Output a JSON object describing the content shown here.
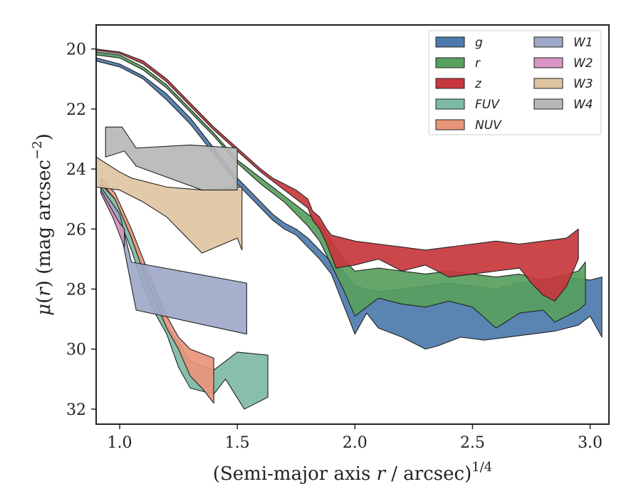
{
  "chart_data": {
    "type": "area",
    "xlabel": "(Semi-major axis r / arcsec)",
    "xlabel_parts": {
      "prefix": "(Semi-major axis ",
      "var": "r",
      "suffix": " / arcsec)",
      "sup": "1/4"
    },
    "ylabel": "μ(r) (mag arcsec⁻²)",
    "ylabel_parts": {
      "mu": "μ",
      "open": "(",
      "var": "r",
      "close": ")",
      "unit": " (mag arcsec",
      "sup": "−2",
      "end": ")"
    },
    "xlim": [
      0.9,
      3.08
    ],
    "ylim": [
      32.5,
      19.2
    ],
    "y_inverted": true,
    "x_ticks": [
      {
        "value": 1.0,
        "label": "1.0"
      },
      {
        "value": 1.5,
        "label": "1.5"
      },
      {
        "value": 2.0,
        "label": "2.0"
      },
      {
        "value": 2.5,
        "label": "2.5"
      },
      {
        "value": 3.0,
        "label": "3.0"
      }
    ],
    "y_ticks": [
      {
        "value": 20,
        "label": "20"
      },
      {
        "value": 22,
        "label": "22"
      },
      {
        "value": 24,
        "label": "24"
      },
      {
        "value": 26,
        "label": "26"
      },
      {
        "value": 28,
        "label": "28"
      },
      {
        "value": 30,
        "label": "30"
      },
      {
        "value": 32,
        "label": "32"
      }
    ],
    "grid": false,
    "legend_position": "top-right",
    "legend_columns": 2,
    "series": [
      {
        "name": "g",
        "color": "#4c7aab",
        "upper": [
          [
            0.9,
            20.3
          ],
          [
            1.0,
            20.5
          ],
          [
            1.1,
            20.9
          ],
          [
            1.2,
            21.5
          ],
          [
            1.3,
            22.3
          ],
          [
            1.4,
            23.3
          ],
          [
            1.5,
            24.3
          ],
          [
            1.6,
            25.1
          ],
          [
            1.65,
            25.5
          ],
          [
            1.7,
            25.8
          ],
          [
            1.75,
            26.0
          ],
          [
            1.8,
            26.3
          ],
          [
            1.85,
            26.7
          ],
          [
            1.9,
            27.1
          ],
          [
            1.95,
            27.4
          ],
          [
            2.0,
            27.9
          ],
          [
            2.1,
            28.1
          ],
          [
            2.2,
            28.0
          ],
          [
            2.3,
            27.9
          ],
          [
            2.4,
            27.8
          ],
          [
            2.5,
            27.9
          ],
          [
            2.6,
            28.0
          ],
          [
            2.7,
            27.8
          ],
          [
            2.8,
            27.7
          ],
          [
            2.9,
            27.6
          ],
          [
            3.0,
            27.7
          ],
          [
            3.05,
            27.6
          ]
        ],
        "lower": [
          [
            0.9,
            20.4
          ],
          [
            1.0,
            20.6
          ],
          [
            1.1,
            21.0
          ],
          [
            1.2,
            21.7
          ],
          [
            1.3,
            22.5
          ],
          [
            1.4,
            23.5
          ],
          [
            1.5,
            24.5
          ],
          [
            1.6,
            25.3
          ],
          [
            1.65,
            25.7
          ],
          [
            1.7,
            26.0
          ],
          [
            1.75,
            26.2
          ],
          [
            1.8,
            26.6
          ],
          [
            1.85,
            27.0
          ],
          [
            1.9,
            27.5
          ],
          [
            1.95,
            28.5
          ],
          [
            2.0,
            29.5
          ],
          [
            2.05,
            28.8
          ],
          [
            2.1,
            29.3
          ],
          [
            2.2,
            29.6
          ],
          [
            2.3,
            30.0
          ],
          [
            2.35,
            29.9
          ],
          [
            2.45,
            29.6
          ],
          [
            2.55,
            29.7
          ],
          [
            2.65,
            29.6
          ],
          [
            2.75,
            29.5
          ],
          [
            2.85,
            29.4
          ],
          [
            2.95,
            29.2
          ],
          [
            3.0,
            28.9
          ],
          [
            3.05,
            29.6
          ]
        ]
      },
      {
        "name": "r",
        "color": "#58a05e",
        "upper": [
          [
            0.9,
            20.1
          ],
          [
            1.0,
            20.2
          ],
          [
            1.1,
            20.6
          ],
          [
            1.2,
            21.2
          ],
          [
            1.3,
            22.0
          ],
          [
            1.4,
            22.8
          ],
          [
            1.5,
            23.7
          ],
          [
            1.6,
            24.3
          ],
          [
            1.65,
            24.6
          ],
          [
            1.7,
            24.9
          ],
          [
            1.75,
            25.2
          ],
          [
            1.8,
            25.5
          ],
          [
            1.85,
            25.8
          ],
          [
            1.9,
            26.4
          ],
          [
            1.95,
            27.0
          ],
          [
            2.0,
            27.4
          ],
          [
            2.1,
            27.3
          ],
          [
            2.2,
            27.4
          ],
          [
            2.3,
            27.5
          ],
          [
            2.4,
            27.4
          ],
          [
            2.5,
            27.5
          ],
          [
            2.6,
            27.6
          ],
          [
            2.7,
            27.5
          ],
          [
            2.8,
            27.7
          ],
          [
            2.9,
            27.5
          ],
          [
            2.95,
            27.4
          ],
          [
            2.98,
            27.1
          ]
        ],
        "lower": [
          [
            0.9,
            20.2
          ],
          [
            1.0,
            20.3
          ],
          [
            1.1,
            20.7
          ],
          [
            1.2,
            21.3
          ],
          [
            1.3,
            22.1
          ],
          [
            1.4,
            22.9
          ],
          [
            1.5,
            23.8
          ],
          [
            1.6,
            24.5
          ],
          [
            1.65,
            24.8
          ],
          [
            1.7,
            25.1
          ],
          [
            1.75,
            25.5
          ],
          [
            1.8,
            25.9
          ],
          [
            1.85,
            26.4
          ],
          [
            1.9,
            27.2
          ],
          [
            1.95,
            28.0
          ],
          [
            2.0,
            28.9
          ],
          [
            2.1,
            28.3
          ],
          [
            2.2,
            28.5
          ],
          [
            2.3,
            28.6
          ],
          [
            2.4,
            28.4
          ],
          [
            2.5,
            28.6
          ],
          [
            2.6,
            29.3
          ],
          [
            2.7,
            28.8
          ],
          [
            2.8,
            28.7
          ],
          [
            2.85,
            29.1
          ],
          [
            2.95,
            28.7
          ],
          [
            2.98,
            28.5
          ]
        ]
      },
      {
        "name": "z",
        "color": "#c8373d",
        "upper": [
          [
            0.9,
            20.0
          ],
          [
            1.0,
            20.1
          ],
          [
            1.1,
            20.4
          ],
          [
            1.2,
            21.0
          ],
          [
            1.3,
            21.8
          ],
          [
            1.4,
            22.6
          ],
          [
            1.5,
            23.3
          ],
          [
            1.6,
            24.0
          ],
          [
            1.65,
            24.3
          ],
          [
            1.7,
            24.5
          ],
          [
            1.75,
            24.7
          ],
          [
            1.8,
            25.0
          ],
          [
            1.82,
            25.4
          ],
          [
            1.85,
            25.6
          ],
          [
            1.88,
            26.0
          ],
          [
            1.9,
            26.2
          ],
          [
            2.0,
            26.4
          ],
          [
            2.1,
            26.5
          ],
          [
            2.2,
            26.6
          ],
          [
            2.3,
            26.7
          ],
          [
            2.4,
            26.6
          ],
          [
            2.5,
            26.5
          ],
          [
            2.6,
            26.4
          ],
          [
            2.7,
            26.5
          ],
          [
            2.8,
            26.4
          ],
          [
            2.9,
            26.3
          ],
          [
            2.95,
            26.0
          ]
        ],
        "lower": [
          [
            0.9,
            20.05
          ],
          [
            1.0,
            20.15
          ],
          [
            1.1,
            20.5
          ],
          [
            1.2,
            21.1
          ],
          [
            1.3,
            21.9
          ],
          [
            1.4,
            22.7
          ],
          [
            1.5,
            23.4
          ],
          [
            1.6,
            24.1
          ],
          [
            1.65,
            24.4
          ],
          [
            1.7,
            24.7
          ],
          [
            1.75,
            25.0
          ],
          [
            1.8,
            25.3
          ],
          [
            1.82,
            25.7
          ],
          [
            1.85,
            26.0
          ],
          [
            1.88,
            26.5
          ],
          [
            1.9,
            26.9
          ],
          [
            1.92,
            27.3
          ],
          [
            2.0,
            27.2
          ],
          [
            2.1,
            27.0
          ],
          [
            2.2,
            27.4
          ],
          [
            2.3,
            27.2
          ],
          [
            2.4,
            27.6
          ],
          [
            2.5,
            27.5
          ],
          [
            2.6,
            27.4
          ],
          [
            2.7,
            27.3
          ],
          [
            2.75,
            27.8
          ],
          [
            2.8,
            28.2
          ],
          [
            2.85,
            28.4
          ],
          [
            2.9,
            27.9
          ],
          [
            2.95,
            27.0
          ]
        ]
      },
      {
        "name": "FUV",
        "color": "#7dbaa4",
        "upper": [
          [
            0.92,
            24.5
          ],
          [
            0.98,
            25.0
          ],
          [
            1.05,
            26.2
          ],
          [
            1.1,
            27.3
          ],
          [
            1.15,
            28.2
          ],
          [
            1.2,
            29.2
          ],
          [
            1.25,
            29.8
          ],
          [
            1.3,
            30.4
          ],
          [
            1.4,
            30.7
          ],
          [
            1.5,
            30.1
          ],
          [
            1.63,
            30.2
          ]
        ],
        "lower": [
          [
            0.92,
            24.7
          ],
          [
            0.98,
            25.3
          ],
          [
            1.05,
            26.7
          ],
          [
            1.1,
            27.9
          ],
          [
            1.15,
            28.8
          ],
          [
            1.2,
            29.5
          ],
          [
            1.25,
            30.6
          ],
          [
            1.3,
            31.3
          ],
          [
            1.4,
            31.5
          ],
          [
            1.45,
            31.0
          ],
          [
            1.53,
            32.0
          ],
          [
            1.63,
            31.6
          ]
        ]
      },
      {
        "name": "NUV",
        "color": "#e8957a",
        "upper": [
          [
            0.92,
            24.3
          ],
          [
            0.98,
            24.8
          ],
          [
            1.05,
            26.0
          ],
          [
            1.1,
            27.0
          ],
          [
            1.15,
            28.0
          ],
          [
            1.2,
            28.9
          ],
          [
            1.25,
            29.6
          ],
          [
            1.3,
            30.0
          ],
          [
            1.4,
            30.3
          ]
        ],
        "lower": [
          [
            0.92,
            24.45
          ],
          [
            0.98,
            25.0
          ],
          [
            1.05,
            26.3
          ],
          [
            1.1,
            27.4
          ],
          [
            1.15,
            28.4
          ],
          [
            1.2,
            29.3
          ],
          [
            1.25,
            30.0
          ],
          [
            1.3,
            30.9
          ],
          [
            1.35,
            31.3
          ],
          [
            1.4,
            31.8
          ]
        ]
      },
      {
        "name": "W1",
        "color": "#9ea8c8",
        "upper": [
          [
            0.92,
            24.6
          ],
          [
            1.0,
            25.5
          ],
          [
            1.05,
            27.1
          ],
          [
            1.54,
            27.8
          ]
        ],
        "lower": [
          [
            0.92,
            24.8
          ],
          [
            1.0,
            25.9
          ],
          [
            1.07,
            28.7
          ],
          [
            1.54,
            29.5
          ]
        ]
      },
      {
        "name": "W2",
        "color": "#d895c3",
        "upper": [
          [
            0.92,
            24.7
          ],
          [
            1.0,
            25.8
          ],
          [
            1.02,
            26.0
          ]
        ],
        "lower": [
          [
            0.92,
            24.8
          ],
          [
            0.97,
            25.6
          ],
          [
            1.02,
            26.6
          ]
        ]
      },
      {
        "name": "W3",
        "color": "#dfc4a2",
        "upper": [
          [
            0.9,
            23.6
          ],
          [
            1.0,
            24.1
          ],
          [
            1.05,
            24.3
          ],
          [
            1.2,
            24.6
          ],
          [
            1.35,
            24.7
          ],
          [
            1.5,
            24.6
          ],
          [
            1.52,
            24.6
          ]
        ],
        "lower": [
          [
            0.9,
            24.6
          ],
          [
            1.0,
            24.7
          ],
          [
            1.1,
            25.1
          ],
          [
            1.2,
            25.6
          ],
          [
            1.35,
            26.8
          ],
          [
            1.5,
            26.3
          ],
          [
            1.52,
            26.7
          ]
        ]
      },
      {
        "name": "W4",
        "color": "#b7b7b7",
        "upper": [
          [
            0.94,
            22.6
          ],
          [
            1.01,
            22.6
          ],
          [
            1.07,
            23.3
          ],
          [
            1.3,
            23.2
          ],
          [
            1.5,
            23.3
          ]
        ],
        "lower": [
          [
            0.94,
            23.6
          ],
          [
            1.02,
            23.4
          ],
          [
            1.07,
            23.9
          ],
          [
            1.35,
            24.7
          ],
          [
            1.5,
            24.7
          ]
        ]
      }
    ]
  }
}
